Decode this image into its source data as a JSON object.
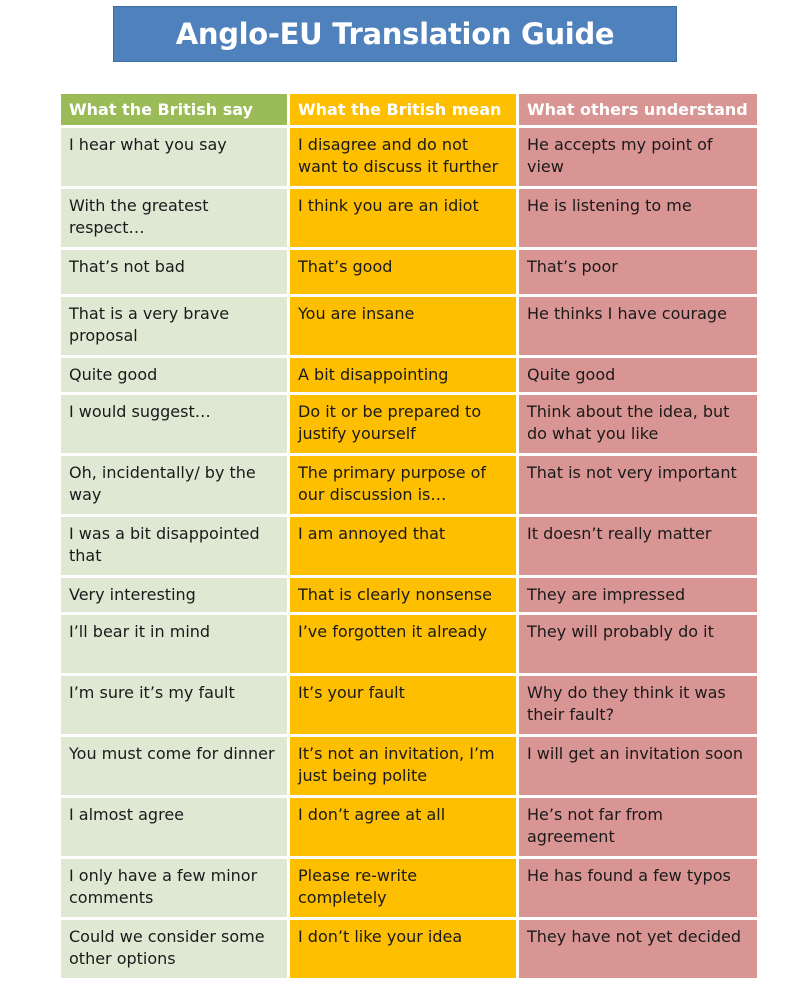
{
  "title": "Anglo-EU Translation Guide",
  "headers": {
    "col1": "What the British say",
    "col2": "What the British mean",
    "col3": "What others understand"
  },
  "colors": {
    "banner": "#4f81bd",
    "header_green": "#9bbb59",
    "header_orange": "#fdbf00",
    "header_pink": "#d99594",
    "cell_green": "#dfe8d3",
    "cell_orange": "#fdbf00",
    "cell_pink": "#d99594"
  },
  "rows": [
    {
      "say": "I hear what you say",
      "mean": "I disagree and do not want to discuss it further",
      "understand": "He accepts my point of view"
    },
    {
      "say": "With the greatest respect…",
      "mean": "I think you are an idiot",
      "understand": "He is listening to me"
    },
    {
      "say": "That’s not bad",
      "mean": "That’s good",
      "understand": "That’s poor"
    },
    {
      "say": "That is a very brave proposal",
      "mean": "You are insane",
      "understand": "He thinks I have courage"
    },
    {
      "say": "Quite good",
      "mean": "A bit disappointing",
      "understand": "Quite good"
    },
    {
      "say": "I would suggest…",
      "mean": "Do it or be prepared to justify yourself",
      "understand": "Think about the idea, but do what you like"
    },
    {
      "say": "Oh, incidentally/ by the way",
      "mean": "The primary purpose of our discussion is…",
      "understand": "That is not very important"
    },
    {
      "say": "I was a bit disappointed that",
      "mean": "I am annoyed that",
      "understand": "It doesn’t really matter"
    },
    {
      "say": "Very interesting",
      "mean": "That is clearly nonsense",
      "understand": "They are impressed"
    },
    {
      "say": "I’ll bear it in mind",
      "mean": "I’ve forgotten it already",
      "understand": "They will probably do it"
    },
    {
      "say": "I’m sure it’s my fault",
      "mean": "It’s your fault",
      "understand": "Why do they think it was their fault?"
    },
    {
      "say": "You must come for dinner",
      "mean": "It’s not an invitation, I’m just being polite",
      "understand": "I will get an invitation soon"
    },
    {
      "say": "I almost agree",
      "mean": "I don’t agree at all",
      "understand": "He’s not far from agreement"
    },
    {
      "say": "I only have a few minor comments",
      "mean": "Please re-write completely",
      "understand": "He has found a few typos"
    },
    {
      "say": "Could we consider some other options",
      "mean": "I don’t like your idea",
      "understand": "They have not yet decided"
    }
  ]
}
